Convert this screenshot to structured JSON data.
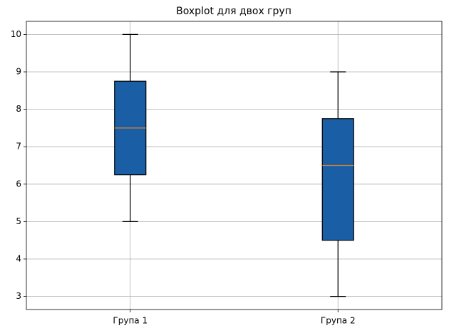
{
  "chart_data": {
    "type": "box",
    "title": "Boxplot для двох груп",
    "categories": [
      "Група 1",
      "Група 2"
    ],
    "boxes": [
      {
        "whislo": 5,
        "q1": 6.25,
        "med": 7.5,
        "q3": 8.75,
        "whishi": 10
      },
      {
        "whislo": 3,
        "q1": 4.5,
        "med": 6.5,
        "q3": 7.75,
        "whishi": 9
      }
    ],
    "color": "#1a5fa5",
    "median_color": "#d9822b",
    "ylim": [
      2.65,
      10.35
    ],
    "yticks": [
      3,
      4,
      5,
      6,
      7,
      8,
      9,
      10
    ],
    "grid": true
  }
}
